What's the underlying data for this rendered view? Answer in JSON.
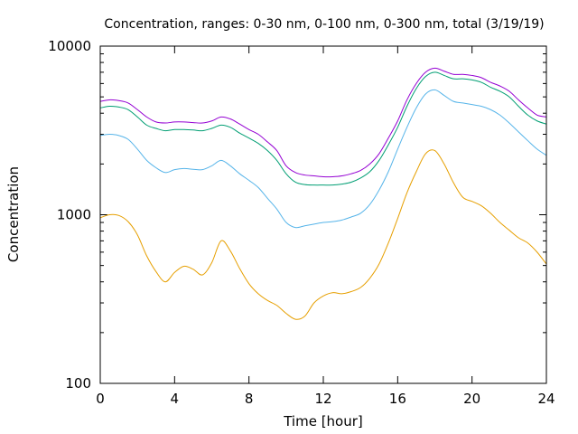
{
  "chart_data": {
    "type": "line",
    "title": "Concentration, ranges: 0-30 nm, 0-100 nm, 0-300 nm, total (3/19/19)",
    "xlabel": "Time [hour]",
    "ylabel": "Concentration",
    "xlim": [
      0,
      24
    ],
    "ylim": [
      100,
      10000
    ],
    "yscale": "log",
    "grid": false,
    "legend": "none",
    "x_ticks": [
      0,
      4,
      8,
      12,
      16,
      20,
      24
    ],
    "x_tick_labels": [
      "0",
      "4",
      "8",
      "12",
      "16",
      "20",
      "24"
    ],
    "y_ticks": [
      100,
      1000,
      10000
    ],
    "y_tick_labels": [
      "100",
      "1000",
      "10000"
    ],
    "series": [
      {
        "color": "#e69f00",
        "x": [
          0,
          0.5,
          1,
          1.5,
          2,
          2.5,
          3,
          3.5,
          4,
          4.5,
          5,
          5.5,
          6,
          6.5,
          7,
          7.5,
          8,
          8.5,
          9,
          9.5,
          10,
          10.5,
          11,
          11.5,
          12,
          12.5,
          13,
          13.5,
          14,
          14.5,
          15,
          15.5,
          16,
          16.5,
          17,
          17.5,
          18,
          18.5,
          19,
          19.5,
          20,
          20.5,
          21,
          21.5,
          22,
          22.5,
          23,
          23.5,
          24
        ],
        "y": [
          960,
          1000,
          990,
          910,
          760,
          570,
          460,
          400,
          455,
          495,
          475,
          440,
          520,
          700,
          610,
          480,
          390,
          340,
          310,
          290,
          260,
          240,
          250,
          300,
          330,
          345,
          340,
          350,
          370,
          420,
          510,
          680,
          950,
          1350,
          1800,
          2300,
          2400,
          2000,
          1550,
          1270,
          1200,
          1130,
          1020,
          900,
          810,
          730,
          680,
          600,
          510
        ]
      },
      {
        "color": "#56b4e9",
        "x": [
          0,
          0.5,
          1,
          1.5,
          2,
          2.5,
          3,
          3.5,
          4,
          4.5,
          5,
          5.5,
          6,
          6.5,
          7,
          7.5,
          8,
          8.5,
          9,
          9.5,
          10,
          10.5,
          11,
          11.5,
          12,
          12.5,
          13,
          13.5,
          14,
          14.5,
          15,
          15.5,
          16,
          16.5,
          17,
          17.5,
          18,
          18.5,
          19,
          19.5,
          20,
          20.5,
          21,
          21.5,
          22,
          22.5,
          23,
          23.5,
          24
        ],
        "y": [
          2950,
          3000,
          2950,
          2800,
          2450,
          2100,
          1900,
          1780,
          1850,
          1880,
          1860,
          1850,
          1950,
          2100,
          1950,
          1750,
          1600,
          1450,
          1250,
          1080,
          900,
          840,
          860,
          880,
          900,
          910,
          930,
          970,
          1020,
          1150,
          1400,
          1800,
          2450,
          3300,
          4300,
          5200,
          5500,
          5100,
          4700,
          4600,
          4500,
          4400,
          4200,
          3900,
          3500,
          3100,
          2750,
          2450,
          2250
        ]
      },
      {
        "color": "#009e73",
        "x": [
          0,
          0.5,
          1,
          1.5,
          2,
          2.5,
          3,
          3.5,
          4,
          4.5,
          5,
          5.5,
          6,
          6.5,
          7,
          7.5,
          8,
          8.5,
          9,
          9.5,
          10,
          10.5,
          11,
          11.5,
          12,
          12.5,
          13,
          13.5,
          14,
          14.5,
          15,
          15.5,
          16,
          16.5,
          17,
          17.5,
          18,
          18.5,
          19,
          19.5,
          20,
          20.5,
          21,
          21.5,
          22,
          22.5,
          23,
          23.5,
          24
        ],
        "y": [
          4300,
          4400,
          4350,
          4200,
          3800,
          3400,
          3250,
          3150,
          3200,
          3200,
          3180,
          3150,
          3250,
          3400,
          3300,
          3050,
          2850,
          2650,
          2400,
          2100,
          1750,
          1560,
          1510,
          1500,
          1500,
          1500,
          1520,
          1560,
          1650,
          1800,
          2100,
          2600,
          3300,
          4400,
          5600,
          6600,
          7000,
          6700,
          6400,
          6400,
          6300,
          6100,
          5700,
          5400,
          5000,
          4400,
          3900,
          3600,
          3450
        ]
      },
      {
        "color": "#9400d3",
        "x": [
          0,
          0.5,
          1,
          1.5,
          2,
          2.5,
          3,
          3.5,
          4,
          4.5,
          5,
          5.5,
          6,
          6.5,
          7,
          7.5,
          8,
          8.5,
          9,
          9.5,
          10,
          10.5,
          11,
          11.5,
          12,
          12.5,
          13,
          13.5,
          14,
          14.5,
          15,
          15.5,
          16,
          16.5,
          17,
          17.5,
          18,
          18.5,
          19,
          19.5,
          20,
          20.5,
          21,
          21.5,
          22,
          22.5,
          23,
          23.5,
          24
        ],
        "y": [
          4700,
          4800,
          4750,
          4600,
          4200,
          3800,
          3550,
          3500,
          3550,
          3550,
          3520,
          3500,
          3600,
          3800,
          3700,
          3450,
          3200,
          3000,
          2700,
          2400,
          1950,
          1780,
          1720,
          1700,
          1680,
          1680,
          1700,
          1750,
          1830,
          2000,
          2300,
          2850,
          3600,
          4800,
          6000,
          7000,
          7400,
          7100,
          6800,
          6800,
          6700,
          6500,
          6100,
          5800,
          5400,
          4800,
          4300,
          3900,
          3800
        ]
      }
    ]
  }
}
